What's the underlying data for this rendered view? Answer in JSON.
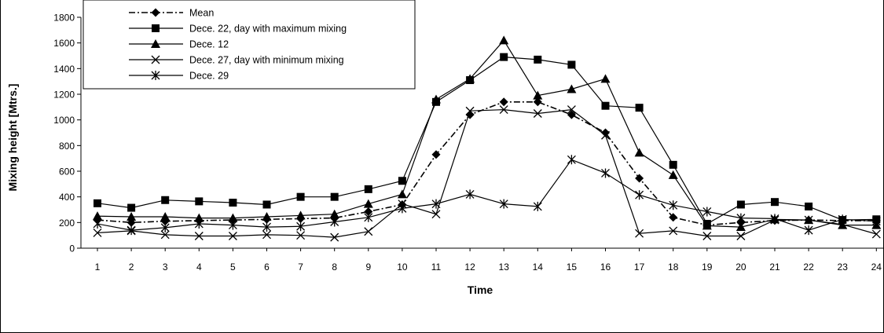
{
  "chart_data": {
    "type": "line",
    "title": "",
    "xlabel": "Time",
    "ylabel": "Mixing height [Mtrs.]",
    "ylim": [
      0,
      1800
    ],
    "yticks": [
      "0",
      "200",
      "400",
      "600",
      "800",
      "1000",
      "1200",
      "1400",
      "1600",
      "1800"
    ],
    "categories": [
      "1",
      "2",
      "3",
      "4",
      "5",
      "6",
      "7",
      "8",
      "9",
      "10",
      "11",
      "12",
      "13",
      "14",
      "15",
      "16",
      "17",
      "18",
      "19",
      "20",
      "21",
      "22",
      "23",
      "24"
    ],
    "legend_position": "top-left",
    "grid": false,
    "series": [
      {
        "name": "Mean",
        "marker": "diamond",
        "dash": "dash-dot",
        "values": [
          220,
          200,
          210,
          215,
          220,
          225,
          230,
          235,
          285,
          340,
          730,
          1040,
          1140,
          1140,
          1040,
          900,
          545,
          240,
          180,
          200,
          215,
          220,
          215,
          215
        ]
      },
      {
        "name": "Dece. 22, day with maximum mixing",
        "marker": "square",
        "dash": "solid",
        "values": [
          350,
          315,
          375,
          365,
          355,
          340,
          400,
          400,
          460,
          525,
          1140,
          1310,
          1490,
          1470,
          1430,
          1110,
          1095,
          650,
          190,
          340,
          360,
          325,
          220,
          225
        ]
      },
      {
        "name": "Dece. 12",
        "marker": "triangle",
        "dash": "solid",
        "values": [
          250,
          245,
          245,
          235,
          235,
          245,
          255,
          265,
          345,
          420,
          1160,
          1320,
          1620,
          1190,
          1240,
          1320,
          745,
          570,
          175,
          165,
          225,
          220,
          180,
          180
        ]
      },
      {
        "name": "Dece. 27, day with minimum mixing",
        "marker": "x",
        "dash": "solid",
        "values": [
          120,
          135,
          105,
          95,
          95,
          105,
          100,
          85,
          130,
          345,
          265,
          1070,
          1080,
          1050,
          1080,
          880,
          115,
          135,
          95,
          95,
          220,
          220,
          185,
          110
        ]
      },
      {
        "name": "Dece. 29",
        "marker": "star",
        "dash": "solid",
        "values": [
          190,
          140,
          160,
          190,
          180,
          165,
          170,
          205,
          240,
          310,
          345,
          420,
          345,
          325,
          690,
          585,
          415,
          335,
          285,
          235,
          230,
          140,
          225,
          210
        ]
      }
    ]
  }
}
